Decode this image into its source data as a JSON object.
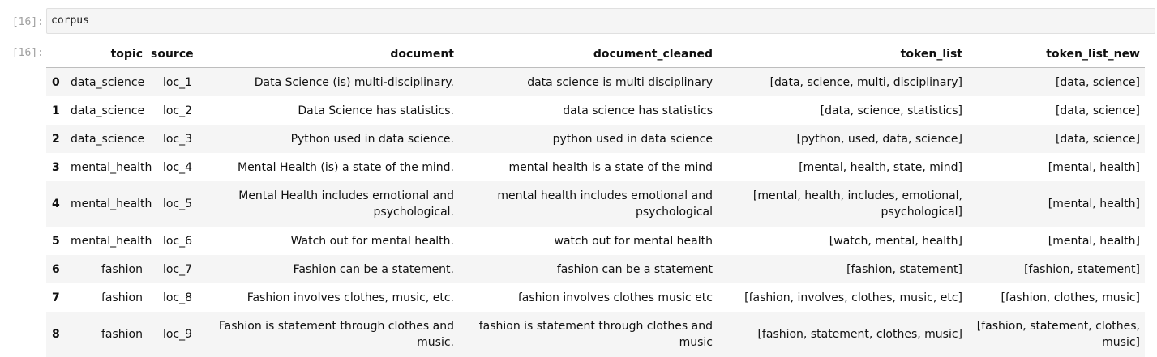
{
  "cell": {
    "in_prompt": "[16]:",
    "out_prompt": "[16]:",
    "code": "corpus"
  },
  "dataframe": {
    "columns": [
      "",
      "topic",
      "source",
      "document",
      "document_cleaned",
      "token_list",
      "token_list_new"
    ],
    "rows": [
      {
        "index": "0",
        "topic": "data_science",
        "source": "loc_1",
        "document": "Data Science (is) multi-disciplinary.",
        "document_cleaned": "data science is multi disciplinary",
        "token_list": "[data, science, multi, disciplinary]",
        "token_list_new": "[data, science]"
      },
      {
        "index": "1",
        "topic": "data_science",
        "source": "loc_2",
        "document": "Data Science has statistics.",
        "document_cleaned": "data science has statistics",
        "token_list": "[data, science, statistics]",
        "token_list_new": "[data, science]"
      },
      {
        "index": "2",
        "topic": "data_science",
        "source": "loc_3",
        "document": "Python used in data science.",
        "document_cleaned": "python used in data science",
        "token_list": "[python, used, data, science]",
        "token_list_new": "[data, science]"
      },
      {
        "index": "3",
        "topic": "mental_health",
        "source": "loc_4",
        "document": "Mental Health (is) a state of the mind.",
        "document_cleaned": "mental health is a state of the mind",
        "token_list": "[mental, health, state, mind]",
        "token_list_new": "[mental, health]"
      },
      {
        "index": "4",
        "topic": "mental_health",
        "source": "loc_5",
        "document": "Mental Health includes emotional and psychological.",
        "document_cleaned": "mental health includes emotional and psychological",
        "token_list": "[mental, health, includes, emotional, psychological]",
        "token_list_new": "[mental, health]"
      },
      {
        "index": "5",
        "topic": "mental_health",
        "source": "loc_6",
        "document": "Watch out for mental health.",
        "document_cleaned": "watch out for mental health",
        "token_list": "[watch, mental, health]",
        "token_list_new": "[mental, health]"
      },
      {
        "index": "6",
        "topic": "fashion",
        "source": "loc_7",
        "document": "Fashion can be a statement.",
        "document_cleaned": "fashion can be a statement",
        "token_list": "[fashion, statement]",
        "token_list_new": "[fashion, statement]"
      },
      {
        "index": "7",
        "topic": "fashion",
        "source": "loc_8",
        "document": "Fashion involves clothes, music, etc.",
        "document_cleaned": "fashion involves clothes music etc",
        "token_list": "[fashion, involves, clothes, music, etc]",
        "token_list_new": "[fashion, clothes, music]"
      },
      {
        "index": "8",
        "topic": "fashion",
        "source": "loc_9",
        "document": "Fashion is statement through clothes and music.",
        "document_cleaned": "fashion is statement through clothes and music",
        "token_list": "[fashion, statement, clothes, music]",
        "token_list_new": "[fashion, statement, clothes, music]"
      }
    ]
  }
}
